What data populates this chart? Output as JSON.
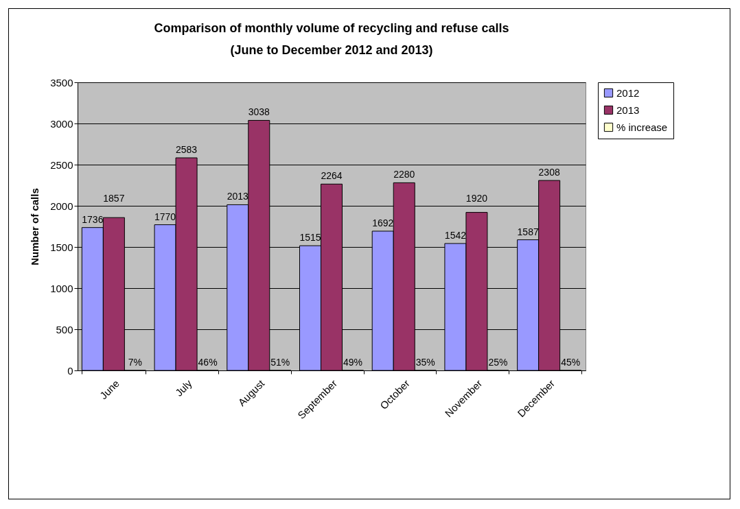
{
  "chart_data": {
    "type": "bar",
    "title": [
      "Comparison of monthly volume of recycling and refuse calls",
      "(June to December 2012 and 2013)"
    ],
    "ylabel": "Number of calls",
    "categories": [
      "June",
      "July",
      "August",
      "September",
      "October",
      "November",
      "December"
    ],
    "series": [
      {
        "name": "2012",
        "color": "#9999ff",
        "values": [
          1736,
          1770,
          2013,
          1515,
          1692,
          1542,
          1587
        ],
        "value_labels": [
          "1736",
          "1770",
          "2013",
          "1515",
          "1692",
          "1542",
          "1587"
        ]
      },
      {
        "name": "2013",
        "color": "#993366",
        "values": [
          1857,
          2583,
          3038,
          2264,
          2280,
          1920,
          2308
        ],
        "value_labels": [
          "1857",
          "2583",
          "3038",
          "2264",
          "2280",
          "1920",
          "2308"
        ]
      },
      {
        "name": "% increase",
        "color": "#ffffcc",
        "values": [
          0.07,
          0.46,
          0.51,
          0.49,
          0.35,
          0.25,
          0.45
        ],
        "value_labels": [
          "7%",
          "46%",
          "51%",
          "49%",
          "35%",
          "25%",
          "45%"
        ]
      }
    ],
    "ylim": [
      0,
      3500
    ],
    "yticks": [
      0,
      500,
      1000,
      1500,
      2000,
      2500,
      3000,
      3500
    ],
    "grid": "y",
    "legend": "right"
  }
}
